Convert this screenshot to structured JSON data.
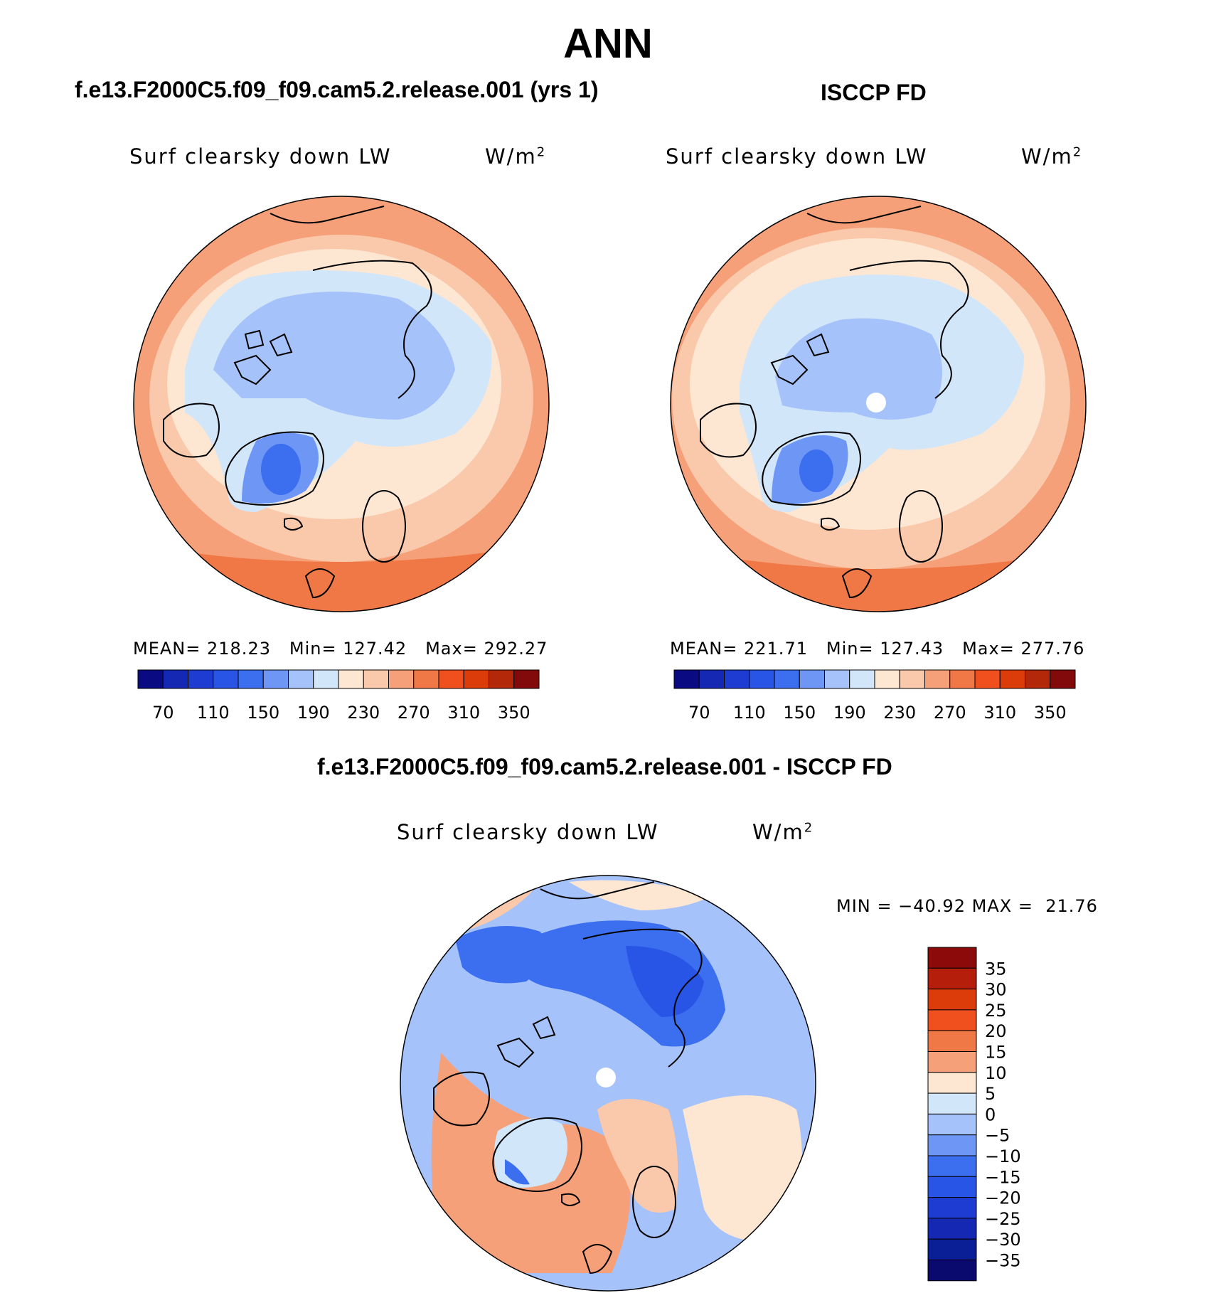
{
  "title": "ANN",
  "panels": [
    {
      "header": "f.e13.F2000C5.f09_f09.cam5.2.release.001 (yrs 1)",
      "variable": "Surf clearsky down LW",
      "units_base": "W/m",
      "units_exp": "2",
      "stats": {
        "mean_label": "MEAN=",
        "mean": "218.23",
        "min_label": "Min=",
        "min": "127.42",
        "max_label": "Max=",
        "max": "292.27"
      }
    },
    {
      "header": "ISCCP FD",
      "variable": "Surf clearsky down LW",
      "units_base": "W/m",
      "units_exp": "2",
      "stats": {
        "mean_label": "MEAN=",
        "mean": "221.71",
        "min_label": "Min=",
        "min": "127.43",
        "max_label": "Max=",
        "max": "277.76"
      }
    },
    {
      "header": "f.e13.F2000C5.f09_f09.cam5.2.release.001 - ISCCP FD",
      "variable": "Surf clearsky down LW",
      "units_base": "W/m",
      "units_exp": "2",
      "stats": {
        "min_label": "MIN",
        "min": "−40.92",
        "max_label": "MAX",
        "max": "21.76",
        "eq": "="
      }
    }
  ],
  "colorbar_abs": {
    "labels": [
      "70",
      "110",
      "150",
      "190",
      "230",
      "270",
      "310",
      "350"
    ],
    "colors": [
      "#0a0a82",
      "#1428b4",
      "#1e3cd2",
      "#2855e6",
      "#3c6ef0",
      "#6e96f5",
      "#a5c3fa",
      "#d2e6fa",
      "#fde6d2",
      "#fac8aa",
      "#f5a078",
      "#f07846",
      "#f0501e",
      "#dc3c0a",
      "#b4280a",
      "#820a0a"
    ]
  },
  "colorbar_diff": {
    "labels": [
      "35",
      "30",
      "25",
      "20",
      "15",
      "10",
      "5",
      "0",
      "−5",
      "−10",
      "−15",
      "−20",
      "−25",
      "−30",
      "−35"
    ],
    "colors": [
      "#8c0a0a",
      "#b41e0a",
      "#dc3c0a",
      "#f0501e",
      "#f07846",
      "#f5a078",
      "#fde6d2",
      "#d2e6fa",
      "#a5c3fa",
      "#6e96f5",
      "#3c6ef0",
      "#2855e6",
      "#1e3cd2",
      "#1428b4",
      "#0a1e96",
      "#0a0a6e"
    ]
  },
  "map_palette": {
    "deep_blue": "#3c6ef0",
    "mid_blue": "#6e96f5",
    "light_blue": "#a5c3fa",
    "pale_blue": "#d2e6fa",
    "cream": "#fde6d2",
    "peach": "#fac8aa",
    "salmon": "#f5a078",
    "orange": "#f07846",
    "red": "#dc3c0a"
  }
}
